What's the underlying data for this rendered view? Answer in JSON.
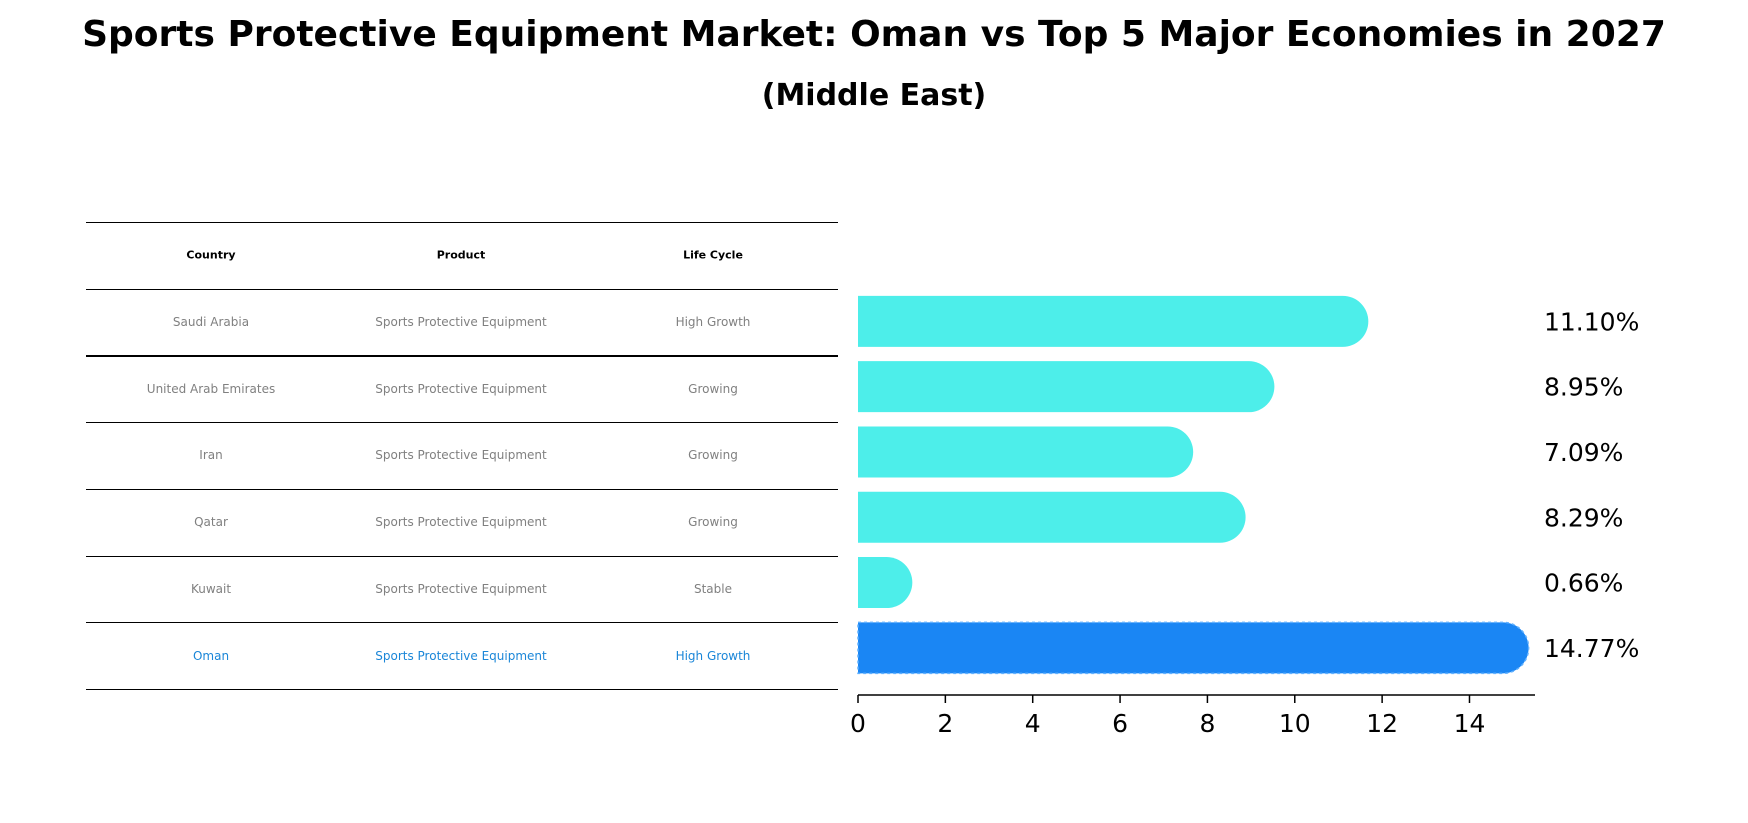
{
  "title": "Sports Protective Equipment Market: Oman vs Top 5 Major Economies in 2027",
  "subtitle": "(Middle East)",
  "table": {
    "headers": [
      "Country",
      "Product",
      "Life Cycle"
    ],
    "rows": [
      {
        "country": "Saudi Arabia",
        "product": "Sports Protective Equipment",
        "life_cycle": "High Growth"
      },
      {
        "country": "United Arab Emirates",
        "product": "Sports Protective Equipment",
        "life_cycle": "Growing"
      },
      {
        "country": "Iran",
        "product": "Sports Protective Equipment",
        "life_cycle": "Growing"
      },
      {
        "country": "Qatar",
        "product": "Sports Protective Equipment",
        "life_cycle": "Growing"
      },
      {
        "country": "Kuwait",
        "product": "Sports Protective Equipment",
        "life_cycle": "Stable"
      },
      {
        "country": "Oman",
        "product": "Sports Protective Equipment",
        "life_cycle": "High Growth"
      }
    ]
  },
  "chart_data": {
    "type": "bar",
    "orientation": "horizontal",
    "categories": [
      "Saudi Arabia",
      "United Arab Emirates",
      "Iran",
      "Qatar",
      "Kuwait",
      "Oman"
    ],
    "values": [
      11.1,
      8.95,
      7.09,
      8.29,
      0.66,
      14.77
    ],
    "value_labels": [
      "11.10%",
      "8.95%",
      "7.09%",
      "8.29%",
      "0.66%",
      "14.77%"
    ],
    "xlim": [
      0,
      15.5
    ],
    "xticks": [
      0,
      2,
      4,
      6,
      8,
      10,
      12,
      14
    ],
    "highlight": "Oman",
    "colors": {
      "default": "#4deeea",
      "highlight": "#1a86f4"
    },
    "grid": false
  }
}
